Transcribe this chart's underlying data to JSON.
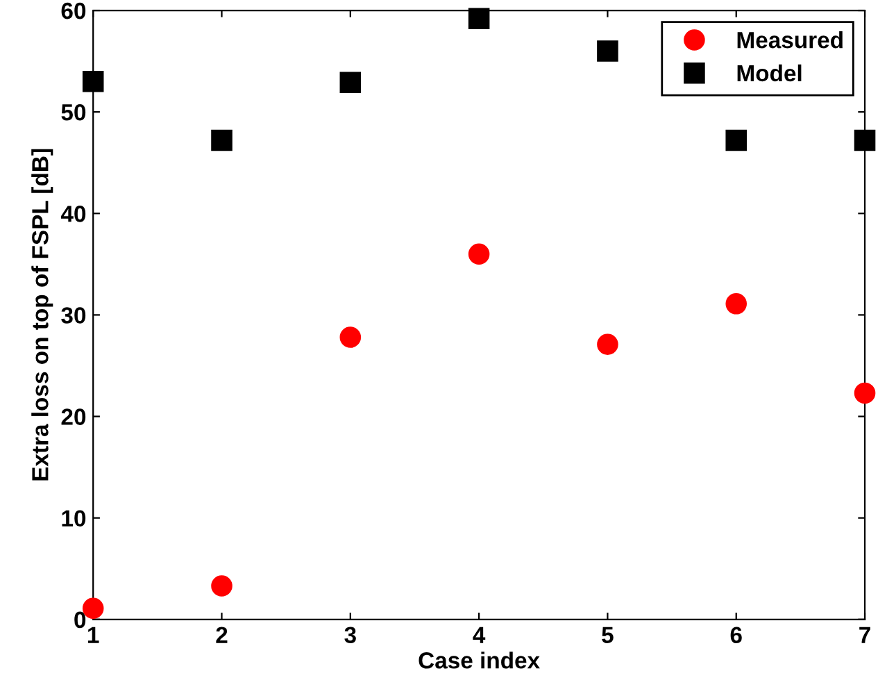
{
  "chart_data": {
    "type": "scatter",
    "xlabel": "Case index",
    "ylabel": "Extra loss on top of FSPL [dB]",
    "x": [
      1,
      2,
      3,
      4,
      5,
      6,
      7
    ],
    "series": [
      {
        "name": "Measured",
        "color": "#ff0000",
        "marker": "circle",
        "values": [
          1.1,
          3.3,
          27.8,
          36.0,
          27.1,
          31.1,
          22.3
        ]
      },
      {
        "name": "Model",
        "color": "#000000",
        "marker": "square",
        "values": [
          53.0,
          47.2,
          52.9,
          59.2,
          56.0,
          47.2,
          47.2
        ]
      }
    ],
    "xlim": [
      1,
      7
    ],
    "ylim": [
      0,
      60
    ],
    "xticks": [
      1,
      2,
      3,
      4,
      5,
      6,
      7
    ],
    "yticks": [
      0,
      10,
      20,
      30,
      40,
      50,
      60
    ],
    "grid": false,
    "legend": "top right"
  }
}
